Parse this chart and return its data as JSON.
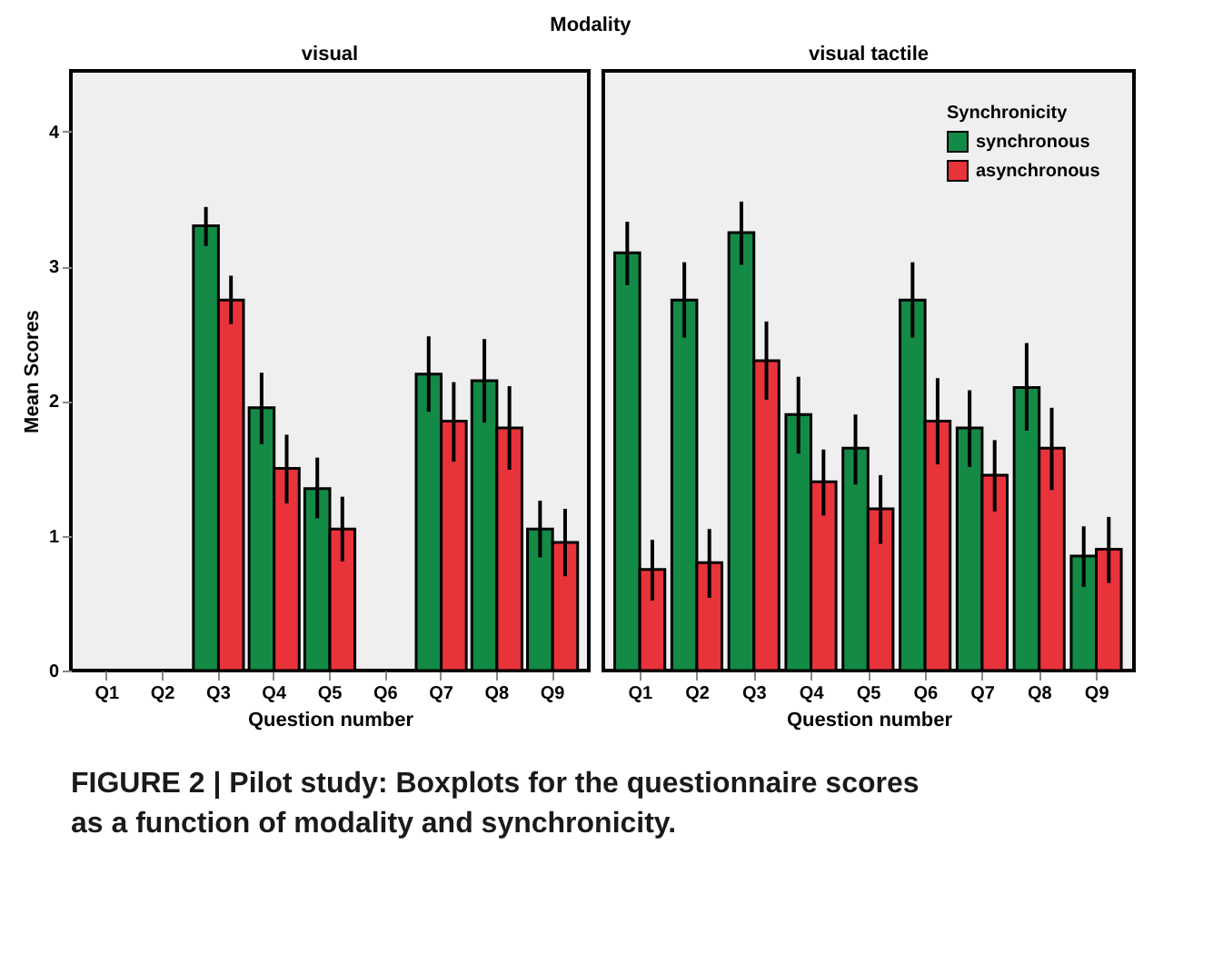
{
  "chart_data": [
    {
      "type": "bar",
      "title": "visual",
      "xlabel": "Question number",
      "ylabel": "Mean Scores",
      "annotations": [
        "Modality",
        "FIGURE 2 | Pilot study: Boxplots for the questionnaire scores as a function of modality and synchronicity."
      ],
      "categories": [
        "Q1",
        "Q2",
        "Q3",
        "Q4",
        "Q5",
        "Q6",
        "Q7",
        "Q8",
        "Q9"
      ],
      "series": [
        {
          "color": "#138a45",
          "values": [
            null,
            null,
            3.3,
            1.95,
            1.35,
            null,
            2.2,
            2.15,
            1.05
          ],
          "errors": [
            null,
            null,
            [
              3.15,
              3.44
            ],
            [
              1.68,
              2.21
            ],
            [
              1.13,
              1.58
            ],
            null,
            [
              1.92,
              2.48
            ],
            [
              1.84,
              2.46
            ],
            [
              0.84,
              1.26
            ]
          ]
        },
        {
          "color": "#e8333a",
          "values": [
            null,
            null,
            2.75,
            1.5,
            1.05,
            null,
            1.85,
            1.8,
            0.95
          ],
          "errors": [
            null,
            null,
            [
              2.57,
              2.93
            ],
            [
              1.24,
              1.75
            ],
            [
              0.81,
              1.29
            ],
            null,
            [
              1.55,
              2.14
            ],
            [
              1.49,
              2.11
            ],
            [
              0.7,
              1.2
            ]
          ]
        }
      ],
      "ylim": [
        0,
        4.45
      ],
      "yticks": [
        0,
        1,
        2,
        3,
        4
      ],
      "grid": false,
      "legend": false
    },
    {
      "type": "bar",
      "title": "visual tactile",
      "xlabel": "Question number",
      "legend_title": "Synchronicity",
      "categories": [
        "Q1",
        "Q2",
        "Q3",
        "Q4",
        "Q5",
        "Q6",
        "Q7",
        "Q8",
        "Q9"
      ],
      "series": [
        {
          "name": "synchronous",
          "color": "#138a45",
          "values": [
            3.1,
            2.75,
            3.25,
            1.9,
            1.65,
            2.75,
            1.8,
            2.1,
            0.85
          ],
          "errors": [
            [
              2.86,
              3.33
            ],
            [
              2.47,
              3.03
            ],
            [
              3.01,
              3.48
            ],
            [
              1.61,
              2.18
            ],
            [
              1.38,
              1.9
            ],
            [
              2.47,
              3.03
            ],
            [
              1.51,
              2.08
            ],
            [
              1.78,
              2.43
            ],
            [
              0.62,
              1.07
            ]
          ]
        },
        {
          "name": "asynchronous",
          "color": "#e8333a",
          "values": [
            0.75,
            0.8,
            2.3,
            1.4,
            1.2,
            1.85,
            1.45,
            1.65,
            0.9
          ],
          "errors": [
            [
              0.52,
              0.97
            ],
            [
              0.54,
              1.05
            ],
            [
              2.01,
              2.59
            ],
            [
              1.15,
              1.64
            ],
            [
              0.94,
              1.45
            ],
            [
              1.53,
              2.17
            ],
            [
              1.18,
              1.71
            ],
            [
              1.34,
              1.95
            ],
            [
              0.65,
              1.14
            ]
          ]
        }
      ],
      "ylim": [
        0,
        4.45
      ],
      "yticks": [
        0,
        1,
        2,
        3,
        4
      ],
      "grid": false,
      "legend": "top right",
      "tick_labels": "x"
    }
  ]
}
